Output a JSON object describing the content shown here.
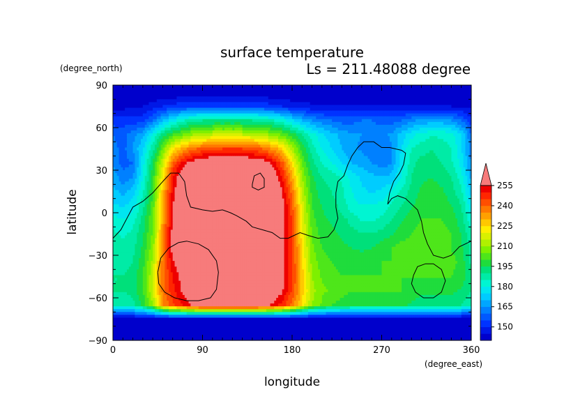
{
  "chart_data": {
    "type": "heatmap",
    "title": "surface temperature",
    "subtitle": "Ls = 211.48088 degree",
    "xlabel": "longitude",
    "ylabel": "latitude",
    "x_unit": "(degree_east)",
    "y_unit": "(degree_north)",
    "xlim": [
      0,
      360
    ],
    "ylim": [
      -90,
      90
    ],
    "x_ticks": [
      "0",
      "90",
      "180",
      "270",
      "360"
    ],
    "y_ticks": [
      "90",
      "60",
      "30",
      "0",
      "−30",
      "−60",
      "−90"
    ],
    "x_tick_values": [
      0,
      90,
      180,
      270,
      360
    ],
    "y_tick_values": [
      90,
      60,
      30,
      0,
      -30,
      -60,
      -90
    ],
    "colorbar": {
      "levels": [
        140,
        145,
        150,
        155,
        160,
        165,
        170,
        175,
        180,
        185,
        190,
        195,
        200,
        205,
        210,
        215,
        220,
        225,
        230,
        235,
        240,
        245,
        250,
        255,
        260
      ],
      "labels": [
        "150",
        "165",
        "180",
        "195",
        "210",
        "225",
        "240",
        "255"
      ],
      "label_values": [
        150,
        165,
        180,
        195,
        210,
        225,
        240,
        255
      ],
      "colors": [
        "#0000cc",
        "#0018e6",
        "#0033ff",
        "#0059ff",
        "#0080ff",
        "#00a6ff",
        "#00ccff",
        "#00e6f0",
        "#00f5d2",
        "#00eba6",
        "#00e07a",
        "#1fdc3c",
        "#4ee61a",
        "#7ef000",
        "#b0f000",
        "#d9f000",
        "#ffee00",
        "#ffc800",
        "#ffa000",
        "#ff7800",
        "#ff4e00",
        "#ff2600",
        "#ee0000",
        "#f77b7b"
      ],
      "overflow_color": "#f77b7b"
    },
    "grid": {
      "lon_step": 10,
      "lat_step": 10,
      "lon": [
        0,
        10,
        20,
        30,
        40,
        50,
        60,
        70,
        80,
        90,
        100,
        110,
        120,
        130,
        140,
        150,
        160,
        170,
        180,
        190,
        200,
        210,
        220,
        230,
        240,
        250,
        260,
        270,
        280,
        290,
        300,
        310,
        320,
        330,
        340,
        350,
        360
      ],
      "lat_rows_north_to_south": [
        85,
        75,
        65,
        55,
        45,
        35,
        25,
        15,
        5,
        -5,
        -15,
        -25,
        -35,
        -45,
        -55,
        -65,
        -75,
        -85
      ],
      "temperature": [
        [
          140,
          140,
          140,
          140,
          140,
          140,
          140,
          140,
          140,
          140,
          140,
          140,
          140,
          140,
          140,
          140,
          140,
          140,
          140,
          140,
          140,
          140,
          140,
          140,
          140,
          140,
          140,
          140,
          140,
          140,
          140,
          140,
          140,
          140,
          140,
          140,
          140
        ],
        [
          143,
          143,
          144,
          145,
          147,
          150,
          152,
          153,
          154,
          154,
          154,
          154,
          154,
          154,
          154,
          153,
          152,
          150,
          148,
          147,
          146,
          145,
          145,
          145,
          145,
          145,
          145,
          145,
          145,
          145,
          145,
          145,
          145,
          145,
          145,
          144,
          143
        ],
        [
          152,
          152,
          152,
          153,
          160,
          170,
          178,
          184,
          188,
          190,
          190,
          190,
          190,
          190,
          190,
          189,
          186,
          182,
          176,
          170,
          165,
          162,
          160,
          158,
          158,
          160,
          160,
          158,
          158,
          160,
          164,
          166,
          167,
          167,
          165,
          160,
          152
        ],
        [
          160,
          158,
          163,
          168,
          180,
          192,
          200,
          205,
          210,
          212,
          215,
          215,
          215,
          215,
          214,
          212,
          208,
          204,
          198,
          190,
          182,
          176,
          172,
          168,
          166,
          165,
          164,
          163,
          166,
          172,
          178,
          182,
          184,
          184,
          182,
          175,
          160
        ],
        [
          162,
          158,
          165,
          175,
          188,
          205,
          222,
          232,
          238,
          242,
          244,
          245,
          245,
          245,
          243,
          240,
          234,
          226,
          212,
          198,
          188,
          180,
          175,
          170,
          166,
          164,
          162,
          160,
          165,
          175,
          185,
          188,
          190,
          188,
          185,
          176,
          162
        ],
        [
          164,
          158,
          160,
          178,
          195,
          215,
          240,
          252,
          258,
          262,
          264,
          265,
          265,
          264,
          262,
          260,
          254,
          242,
          224,
          205,
          192,
          185,
          180,
          175,
          170,
          168,
          165,
          162,
          165,
          178,
          188,
          192,
          192,
          190,
          186,
          178,
          164
        ],
        [
          168,
          162,
          165,
          180,
          198,
          222,
          250,
          262,
          266,
          268,
          270,
          272,
          272,
          272,
          270,
          268,
          262,
          250,
          232,
          210,
          196,
          190,
          188,
          184,
          178,
          174,
          172,
          170,
          172,
          180,
          190,
          194,
          195,
          193,
          190,
          182,
          168
        ],
        [
          172,
          168,
          172,
          184,
          200,
          228,
          252,
          264,
          268,
          270,
          272,
          274,
          274,
          274,
          272,
          270,
          265,
          255,
          238,
          214,
          198,
          192,
          190,
          186,
          180,
          176,
          174,
          176,
          180,
          186,
          192,
          196,
          197,
          196,
          192,
          186,
          172
        ],
        [
          176,
          174,
          178,
          188,
          202,
          230,
          255,
          266,
          270,
          272,
          274,
          275,
          275,
          275,
          273,
          271,
          266,
          258,
          242,
          218,
          200,
          195,
          192,
          188,
          182,
          180,
          180,
          182,
          186,
          190,
          194,
          198,
          198,
          198,
          195,
          190,
          176
        ],
        [
          182,
          180,
          183,
          192,
          205,
          232,
          256,
          266,
          270,
          272,
          274,
          275,
          275,
          275,
          273,
          271,
          266,
          258,
          244,
          220,
          202,
          196,
          194,
          192,
          188,
          184,
          184,
          186,
          190,
          194,
          198,
          200,
          200,
          200,
          198,
          192,
          182
        ],
        [
          186,
          184,
          186,
          194,
          206,
          234,
          258,
          267,
          270,
          272,
          274,
          275,
          275,
          275,
          273,
          271,
          266,
          258,
          245,
          222,
          204,
          198,
          196,
          194,
          192,
          190,
          190,
          192,
          194,
          198,
          200,
          202,
          202,
          202,
          200,
          195,
          186
        ],
        [
          188,
          186,
          188,
          196,
          208,
          236,
          258,
          267,
          270,
          272,
          274,
          275,
          275,
          275,
          273,
          271,
          266,
          258,
          246,
          224,
          206,
          200,
          198,
          196,
          195,
          194,
          195,
          198,
          200,
          202,
          202,
          202,
          202,
          202,
          200,
          196,
          188
        ],
        [
          189,
          188,
          190,
          198,
          212,
          238,
          254,
          262,
          268,
          272,
          274,
          275,
          275,
          275,
          273,
          271,
          266,
          258,
          246,
          226,
          208,
          202,
          200,
          198,
          198,
          198,
          198,
          200,
          200,
          202,
          202,
          202,
          202,
          202,
          202,
          198,
          189
        ],
        [
          190,
          190,
          192,
          200,
          215,
          238,
          250,
          258,
          266,
          270,
          272,
          274,
          274,
          274,
          272,
          270,
          265,
          258,
          246,
          228,
          210,
          204,
          202,
          200,
          200,
          200,
          200,
          200,
          200,
          200,
          200,
          200,
          200,
          200,
          200,
          198,
          190
        ],
        [
          190,
          190,
          192,
          200,
          215,
          238,
          248,
          256,
          264,
          268,
          270,
          272,
          272,
          272,
          270,
          268,
          264,
          256,
          244,
          228,
          212,
          206,
          204,
          202,
          200,
          200,
          200,
          200,
          200,
          200,
          198,
          196,
          196,
          196,
          196,
          194,
          190
        ],
        [
          186,
          186,
          188,
          196,
          210,
          234,
          244,
          250,
          256,
          260,
          262,
          262,
          262,
          262,
          260,
          258,
          254,
          248,
          238,
          224,
          210,
          204,
          200,
          198,
          196,
          196,
          196,
          196,
          196,
          196,
          194,
          192,
          192,
          192,
          192,
          190,
          186
        ],
        [
          140,
          140,
          140,
          140,
          140,
          140,
          140,
          140,
          140,
          140,
          140,
          140,
          140,
          140,
          140,
          140,
          140,
          140,
          140,
          140,
          140,
          140,
          140,
          140,
          140,
          140,
          140,
          140,
          140,
          140,
          140,
          140,
          140,
          140,
          140,
          140,
          140
        ],
        [
          140,
          140,
          140,
          140,
          140,
          140,
          140,
          140,
          140,
          140,
          140,
          140,
          140,
          140,
          140,
          140,
          140,
          140,
          140,
          140,
          140,
          140,
          140,
          140,
          140,
          140,
          140,
          140,
          140,
          140,
          140,
          140,
          140,
          140,
          140,
          140,
          140
        ]
      ]
    },
    "contours": [
      {
        "name": "dichotomy-boundary",
        "points": [
          [
            0,
            -18
          ],
          [
            8,
            -12
          ],
          [
            14,
            -4
          ],
          [
            20,
            4
          ],
          [
            30,
            8
          ],
          [
            40,
            14
          ],
          [
            50,
            22
          ],
          [
            58,
            28
          ],
          [
            66,
            28
          ],
          [
            72,
            22
          ],
          [
            74,
            12
          ],
          [
            78,
            4
          ],
          [
            90,
            2
          ],
          [
            100,
            1
          ],
          [
            110,
            2
          ],
          [
            118,
            0
          ],
          [
            124,
            -2
          ],
          [
            134,
            -6
          ],
          [
            140,
            -10
          ],
          [
            150,
            -12
          ],
          [
            160,
            -14
          ],
          [
            168,
            -18
          ],
          [
            176,
            -18
          ],
          [
            182,
            -16
          ],
          [
            188,
            -14
          ],
          [
            196,
            -16
          ],
          [
            206,
            -18
          ],
          [
            216,
            -17
          ],
          [
            222,
            -12
          ],
          [
            226,
            -4
          ],
          [
            224,
            4
          ],
          [
            224,
            14
          ],
          [
            226,
            22
          ],
          [
            232,
            26
          ],
          [
            234,
            30
          ],
          [
            236,
            34
          ],
          [
            240,
            40
          ],
          [
            246,
            46
          ],
          [
            252,
            50
          ],
          [
            262,
            50
          ],
          [
            270,
            46
          ],
          [
            278,
            46
          ],
          [
            290,
            44
          ],
          [
            294,
            42
          ],
          [
            292,
            34
          ],
          [
            288,
            28
          ],
          [
            282,
            22
          ],
          [
            278,
            14
          ],
          [
            276,
            6
          ],
          [
            280,
            10
          ],
          [
            286,
            12
          ],
          [
            294,
            10
          ],
          [
            300,
            6
          ],
          [
            306,
            2
          ],
          [
            310,
            -6
          ],
          [
            312,
            -14
          ],
          [
            316,
            -22
          ],
          [
            322,
            -30
          ],
          [
            332,
            -32
          ],
          [
            340,
            -30
          ],
          [
            348,
            -24
          ],
          [
            360,
            -20
          ]
        ]
      },
      {
        "name": "hellas-basin",
        "points": [
          [
            45,
            -42
          ],
          [
            48,
            -32
          ],
          [
            56,
            -25
          ],
          [
            66,
            -21
          ],
          [
            74,
            -20
          ],
          [
            86,
            -22
          ],
          [
            96,
            -26
          ],
          [
            104,
            -34
          ],
          [
            106,
            -42
          ],
          [
            104,
            -54
          ],
          [
            98,
            -60
          ],
          [
            86,
            -62
          ],
          [
            74,
            -62
          ],
          [
            62,
            -60
          ],
          [
            52,
            -56
          ],
          [
            46,
            -50
          ],
          [
            45,
            -42
          ]
        ]
      },
      {
        "name": "argyre-basin",
        "points": [
          [
            302,
            -44
          ],
          [
            306,
            -38
          ],
          [
            314,
            -36
          ],
          [
            322,
            -36
          ],
          [
            330,
            -40
          ],
          [
            334,
            -48
          ],
          [
            330,
            -56
          ],
          [
            322,
            -60
          ],
          [
            312,
            -60
          ],
          [
            304,
            -56
          ],
          [
            300,
            -50
          ],
          [
            302,
            -44
          ]
        ]
      },
      {
        "name": "elysium-outline",
        "points": [
          [
            140,
            20
          ],
          [
            142,
            26
          ],
          [
            148,
            28
          ],
          [
            152,
            24
          ],
          [
            152,
            18
          ],
          [
            146,
            16
          ],
          [
            140,
            18
          ],
          [
            140,
            20
          ]
        ]
      }
    ]
  }
}
